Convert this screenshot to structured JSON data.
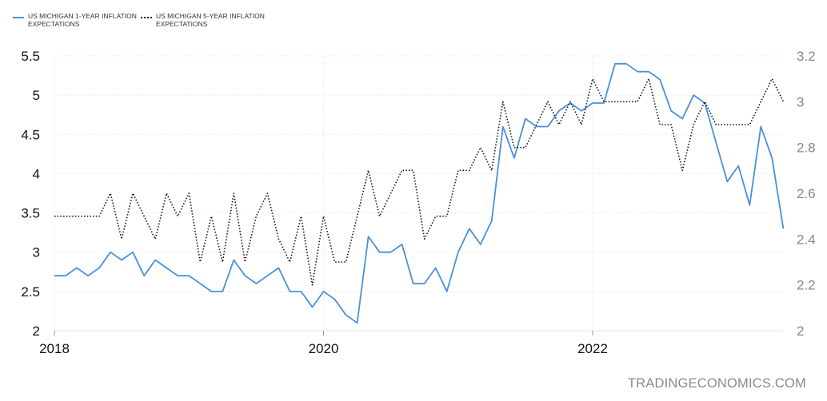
{
  "chart_data": {
    "type": "line",
    "x": [
      "2018-01",
      "2018-02",
      "2018-03",
      "2018-04",
      "2018-05",
      "2018-06",
      "2018-07",
      "2018-08",
      "2018-09",
      "2018-10",
      "2018-11",
      "2018-12",
      "2019-01",
      "2019-02",
      "2019-03",
      "2019-04",
      "2019-05",
      "2019-06",
      "2019-07",
      "2019-08",
      "2019-09",
      "2019-10",
      "2019-11",
      "2019-12",
      "2020-01",
      "2020-02",
      "2020-03",
      "2020-04",
      "2020-05",
      "2020-06",
      "2020-07",
      "2020-08",
      "2020-09",
      "2020-10",
      "2020-11",
      "2020-12",
      "2021-01",
      "2021-02",
      "2021-03",
      "2021-04",
      "2021-05",
      "2021-06",
      "2021-07",
      "2021-08",
      "2021-09",
      "2021-10",
      "2021-11",
      "2021-12",
      "2022-01",
      "2022-02",
      "2022-03",
      "2022-04",
      "2022-05",
      "2022-06",
      "2022-07",
      "2022-08",
      "2022-09",
      "2022-10",
      "2022-11",
      "2022-12",
      "2023-01",
      "2023-02",
      "2023-03",
      "2023-04",
      "2023-05",
      "2023-06"
    ],
    "x_ticks": [
      "2018",
      "2020",
      "2022"
    ],
    "series": [
      {
        "name": "US MICHIGAN 1-YEAR INFLATION EXPECTATIONS",
        "axis": "left",
        "color": "#4a90d9",
        "style": "solid",
        "values": [
          2.7,
          2.7,
          2.8,
          2.7,
          2.8,
          3.0,
          2.9,
          3.0,
          2.7,
          2.9,
          2.8,
          2.7,
          2.7,
          2.6,
          2.5,
          2.5,
          2.9,
          2.7,
          2.6,
          2.7,
          2.8,
          2.5,
          2.5,
          2.3,
          2.5,
          2.4,
          2.2,
          2.1,
          3.2,
          3.0,
          3.0,
          3.1,
          2.6,
          2.6,
          2.8,
          2.5,
          3.0,
          3.3,
          3.1,
          3.4,
          4.6,
          4.2,
          4.7,
          4.6,
          4.6,
          4.8,
          4.9,
          4.8,
          4.9,
          4.9,
          5.4,
          5.4,
          5.3,
          5.3,
          5.2,
          4.8,
          4.7,
          5.0,
          4.9,
          4.4,
          3.9,
          4.1,
          3.6,
          4.6,
          4.2,
          3.3
        ]
      },
      {
        "name": "US MICHIGAN 5-YEAR INFLATION EXPECTATIONS",
        "axis": "right",
        "color": "#111111",
        "style": "dotted",
        "values": [
          2.5,
          2.5,
          2.5,
          2.5,
          2.5,
          2.6,
          2.4,
          2.6,
          2.5,
          2.4,
          2.6,
          2.5,
          2.6,
          2.3,
          2.5,
          2.3,
          2.6,
          2.3,
          2.5,
          2.6,
          2.4,
          2.3,
          2.5,
          2.2,
          2.5,
          2.3,
          2.3,
          2.5,
          2.7,
          2.5,
          2.6,
          2.7,
          2.7,
          2.4,
          2.5,
          2.5,
          2.7,
          2.7,
          2.8,
          2.7,
          3.0,
          2.8,
          2.8,
          2.9,
          3.0,
          2.9,
          3.0,
          2.9,
          3.1,
          3.0,
          3.0,
          3.0,
          3.0,
          3.1,
          2.9,
          2.9,
          2.7,
          2.9,
          3.0,
          2.9,
          2.9,
          2.9,
          2.9,
          3.0,
          3.1,
          3.0
        ]
      }
    ],
    "y_left": {
      "min": 2,
      "max": 5.5,
      "ticks": [
        "2",
        "2.5",
        "3",
        "3.5",
        "4",
        "4.5",
        "5",
        "5.5"
      ]
    },
    "y_right": {
      "min": 2,
      "max": 3.2,
      "ticks": [
        "2",
        "2.2",
        "2.4",
        "2.6",
        "2.8",
        "3",
        "3.2"
      ]
    },
    "grid": true,
    "legend_position": "top-left"
  },
  "watermark": "TRADINGECONOMICS.COM"
}
